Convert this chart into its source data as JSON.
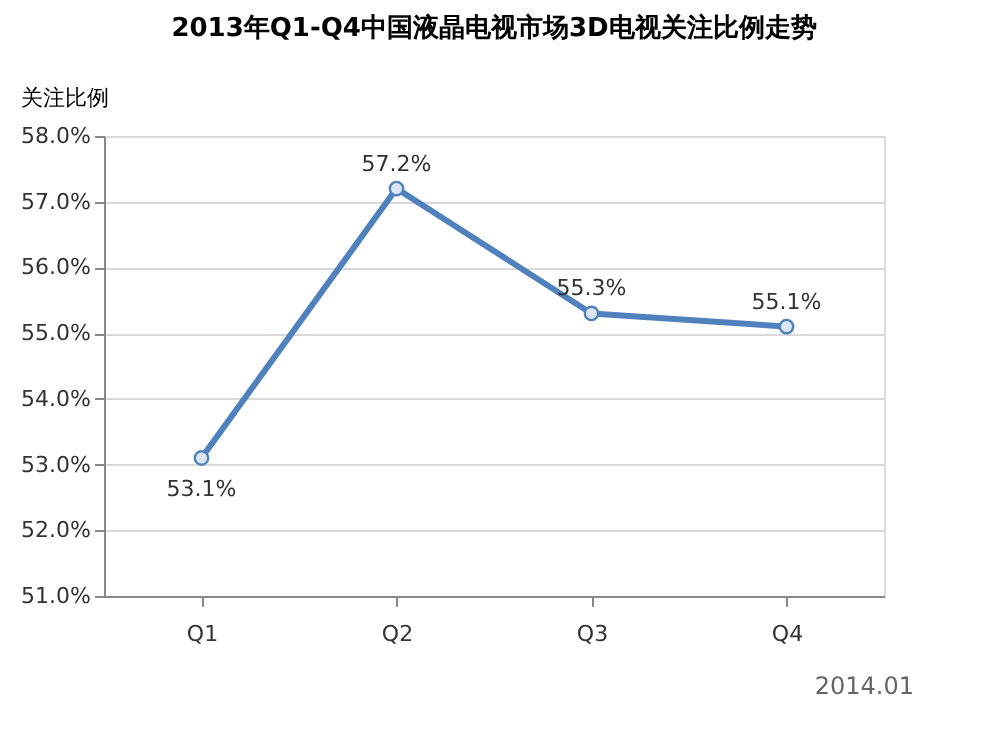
{
  "chart_data": {
    "type": "line",
    "title": "2013年Q1-Q4中国液晶电视市场3D电视关注比例走势",
    "ylabel": "关注比例",
    "categories": [
      "Q1",
      "Q2",
      "Q3",
      "Q4"
    ],
    "series": [
      {
        "color": "#4f81bd",
        "values": [
          53.1,
          57.2,
          55.3,
          55.1
        ],
        "value_labels": [
          "53.1%",
          "57.2%",
          "55.3%",
          "55.1%"
        ]
      }
    ],
    "ylim": [
      51,
      58
    ],
    "yticks": [
      {
        "value": 51,
        "label": "51.0%"
      },
      {
        "value": 52,
        "label": "52.0%"
      },
      {
        "value": 53,
        "label": "53.0%"
      },
      {
        "value": 54,
        "label": "54.0%"
      },
      {
        "value": 55,
        "label": "55.0%"
      },
      {
        "value": 56,
        "label": "56.0%"
      },
      {
        "value": 57,
        "label": "57.0%"
      },
      {
        "value": 58,
        "label": "58.0%"
      }
    ],
    "grid": "y",
    "marker": "circle",
    "line_style": "solid",
    "annotations": [
      "2014.01"
    ]
  }
}
